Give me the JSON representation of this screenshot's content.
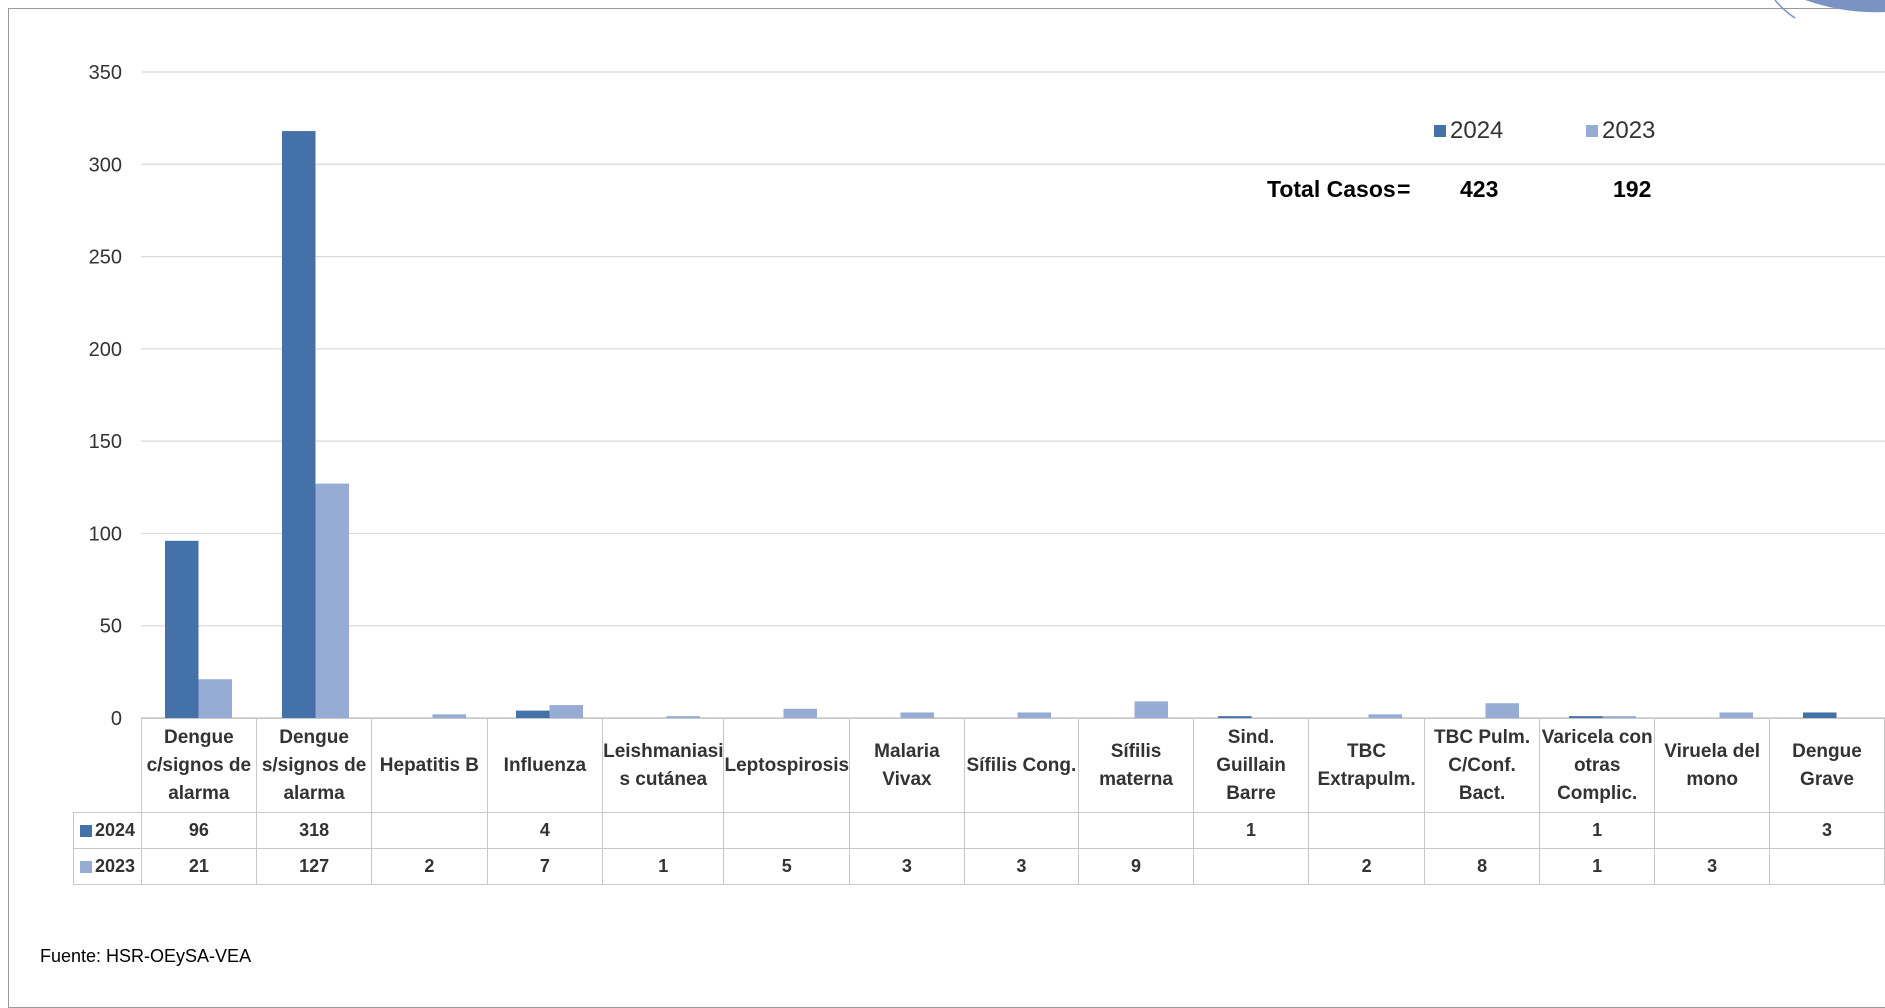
{
  "colors": {
    "s2024": "#4472a8",
    "s2023": "#97acd4",
    "grid": "#d9d9d9",
    "axis": "#bfbfbf",
    "frame": "#9a9a9a"
  },
  "chart_data": {
    "type": "bar",
    "categories": [
      "Dengue c/signos de alarma",
      "Dengue s/signos de alarma",
      "Hepatitis B",
      "Influenza",
      "Leishmaniasis cutánea",
      "Leptospirosis",
      "Malaria Vivax",
      "Sífilis Cong.",
      "Sífilis materna",
      "Sind. Guillain Barre",
      "TBC Extrapulm.",
      "TBC Pulm. C/Conf. Bact.",
      "Varicela con otras Complic.",
      "Viruela del mono",
      "Dengue Grave"
    ],
    "category_lines": [
      [
        "Dengue",
        "c/signos de",
        "alarma"
      ],
      [
        "Dengue",
        "s/signos de",
        "alarma"
      ],
      [
        "Hepatitis B"
      ],
      [
        "Influenza"
      ],
      [
        "Leishmaniasi",
        "s cutánea"
      ],
      [
        "Leptospirosis"
      ],
      [
        "Malaria",
        "Vivax"
      ],
      [
        "Sífilis Cong."
      ],
      [
        "Sífilis",
        "materna"
      ],
      [
        "Sind. Guillain",
        "Barre"
      ],
      [
        "TBC",
        "Extrapulm."
      ],
      [
        "TBC Pulm.",
        "C/Conf. Bact."
      ],
      [
        "Varicela con",
        "otras",
        "Complic."
      ],
      [
        "Viruela del",
        "mono"
      ],
      [
        "Dengue",
        "Grave"
      ]
    ],
    "series": [
      {
        "name": "2024",
        "values": [
          96,
          318,
          null,
          4,
          null,
          null,
          null,
          null,
          null,
          1,
          null,
          null,
          1,
          null,
          3
        ]
      },
      {
        "name": "2023",
        "values": [
          21,
          127,
          2,
          7,
          1,
          5,
          3,
          3,
          9,
          null,
          2,
          8,
          1,
          3,
          null
        ]
      }
    ],
    "ylim": [
      0,
      350
    ],
    "yticks": [
      "0",
      "50",
      "100",
      "150",
      "200",
      "250",
      "300",
      "350"
    ],
    "grid": true,
    "legend_position": "top-right"
  },
  "totals": {
    "label": "Total Casos",
    "equals": "=",
    "v2024": "423",
    "v2023": "192"
  },
  "source": "Fuente: HSR-OEySA-VEA"
}
